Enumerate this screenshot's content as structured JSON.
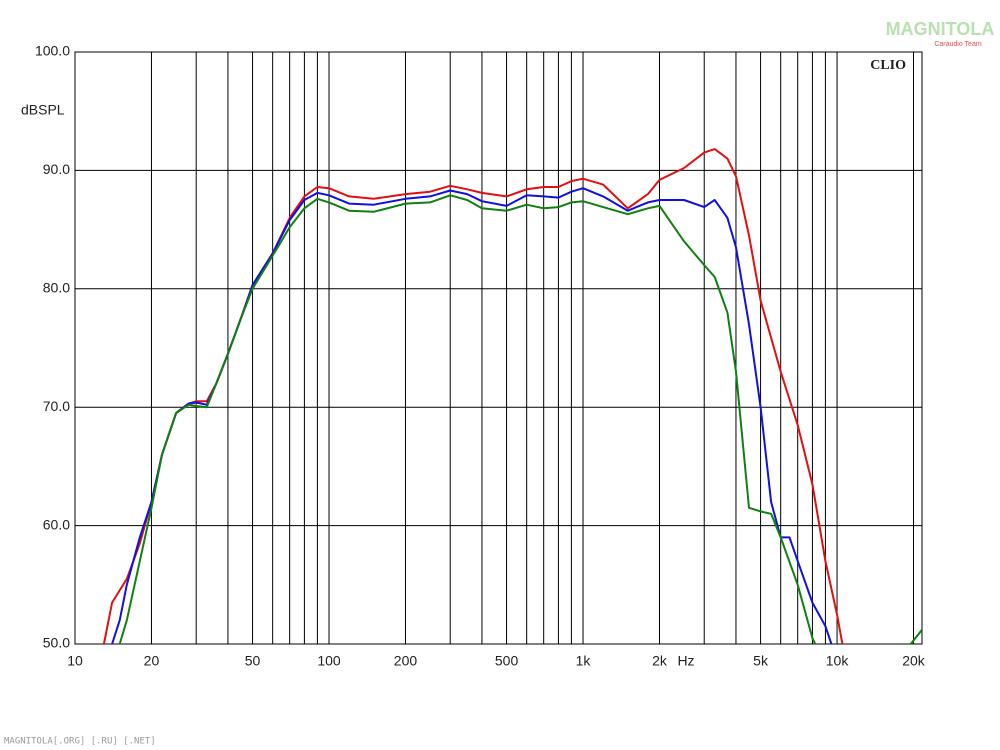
{
  "chart_data": {
    "type": "line",
    "y_label": "dBSPL",
    "x_label": "Hz",
    "annotation": "CLIO",
    "watermark": "MAGNITOLA",
    "watermark_sub": "Caraudio Team",
    "footer": "MAGNITOLA[.ORG] [.RU] [.NET]",
    "log_x": true,
    "grid": true,
    "xlim": [
      10,
      21600
    ],
    "ylim": [
      50,
      100
    ],
    "yticks": [
      {
        "value": 50,
        "label": "50.0"
      },
      {
        "value": 60,
        "label": "60.0"
      },
      {
        "value": 70,
        "label": "70.0"
      },
      {
        "value": 80,
        "label": "80.0"
      },
      {
        "value": 90,
        "label": "90.0"
      },
      {
        "value": 100,
        "label": "100.0"
      }
    ],
    "xticks": [
      10,
      20,
      50,
      100,
      200,
      500,
      {
        "value": 1000,
        "label": "1k"
      },
      {
        "value": 2000,
        "label": "2k"
      },
      {
        "value": 5000,
        "label": "5k"
      },
      {
        "value": 10000,
        "label": "10k"
      },
      {
        "value": 20000,
        "label": "20k"
      }
    ],
    "x_minor_grid": [
      30,
      40,
      60,
      70,
      80,
      90,
      300,
      400,
      600,
      700,
      800,
      900,
      3000,
      4000,
      6000,
      7000,
      8000,
      9000
    ],
    "series": [
      {
        "name": "red",
        "color": "#e01010",
        "x": [
          13,
          14,
          16,
          18,
          20,
          22,
          25,
          28,
          30,
          33,
          36,
          40,
          45,
          50,
          60,
          70,
          80,
          90,
          100,
          120,
          150,
          200,
          250,
          300,
          350,
          400,
          500,
          600,
          700,
          800,
          900,
          1000,
          1200,
          1500,
          1800,
          2000,
          2500,
          3000,
          3300,
          3700,
          4000,
          4500,
          5000,
          6000,
          7000,
          8000,
          9000,
          10000,
          10500
        ],
        "values": [
          50,
          53.5,
          55.5,
          58.5,
          62,
          66,
          69.5,
          70.3,
          70.5,
          70.5,
          72,
          74.5,
          77.5,
          80.3,
          83,
          86,
          87.8,
          88.6,
          88.5,
          87.8,
          87.6,
          88,
          88.2,
          88.7,
          88.4,
          88.1,
          87.8,
          88.4,
          88.6,
          88.6,
          89.1,
          89.3,
          88.8,
          86.8,
          88,
          89.2,
          90.2,
          91.5,
          91.8,
          91,
          89.5,
          84.5,
          79,
          73,
          68.5,
          63.5,
          57,
          52.5,
          50
        ]
      },
      {
        "name": "blue",
        "color": "#1010e0",
        "x": [
          14,
          15,
          16,
          18,
          20,
          22,
          25,
          28,
          30,
          33,
          36,
          40,
          45,
          50,
          60,
          70,
          80,
          90,
          100,
          120,
          150,
          200,
          250,
          300,
          350,
          400,
          500,
          600,
          700,
          800,
          900,
          1000,
          1200,
          1500,
          1800,
          2000,
          2500,
          3000,
          3300,
          3700,
          4000,
          4500,
          5000,
          5500,
          6000,
          6500,
          7000,
          8000,
          9000,
          9500
        ],
        "values": [
          50,
          52,
          55,
          59,
          62,
          66,
          69.5,
          70.3,
          70.4,
          70.2,
          72,
          74.5,
          77.5,
          80.3,
          83,
          85.8,
          87.5,
          88.1,
          87.9,
          87.2,
          87.1,
          87.6,
          87.8,
          88.3,
          88,
          87.4,
          87,
          87.9,
          87.8,
          87.7,
          88.2,
          88.5,
          87.8,
          86.6,
          87.3,
          87.5,
          87.5,
          86.9,
          87.5,
          86,
          83.5,
          77,
          70,
          62,
          59,
          59,
          57,
          53.5,
          51.5,
          50
        ]
      },
      {
        "name": "green",
        "color": "#108010",
        "x": [
          15,
          16,
          18,
          20,
          22,
          25,
          28,
          30,
          33,
          36,
          40,
          45,
          50,
          60,
          70,
          80,
          90,
          100,
          120,
          150,
          200,
          250,
          300,
          350,
          400,
          500,
          600,
          700,
          800,
          900,
          1000,
          1200,
          1500,
          1800,
          2000,
          2500,
          3000,
          3300,
          3700,
          4000,
          4500,
          5000,
          5500,
          6000,
          7000,
          8000,
          8200,
          12000,
          19500,
          21600
        ],
        "values": [
          50,
          52,
          57,
          61.5,
          66,
          69.5,
          70.2,
          70.1,
          70,
          72,
          74.5,
          77.5,
          80,
          82.8,
          85.2,
          86.8,
          87.6,
          87.3,
          86.6,
          86.5,
          87.2,
          87.3,
          87.9,
          87.5,
          86.8,
          86.6,
          87.1,
          86.8,
          86.9,
          87.3,
          87.4,
          86.9,
          86.3,
          86.8,
          87,
          84,
          82,
          81,
          78,
          73,
          61.5,
          61.2,
          61,
          59,
          55,
          50.5,
          50,
          null,
          50,
          51.2
        ]
      }
    ]
  }
}
